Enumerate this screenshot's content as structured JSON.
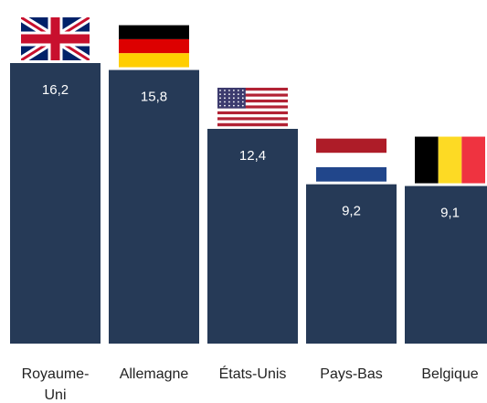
{
  "chart_data": {
    "type": "bar",
    "categories": [
      "Royaume-Uni",
      "Allemagne",
      "États-Unis",
      "Pays-Bas",
      "Belgique"
    ],
    "category_lines": [
      [
        "Royaume-",
        "Uni"
      ],
      [
        "Allemagne"
      ],
      [
        "États-Unis"
      ],
      [
        "Pays-Bas"
      ],
      [
        "Belgique"
      ]
    ],
    "values": [
      16.2,
      15.8,
      12.4,
      9.2,
      9.1
    ],
    "value_labels": [
      "16,2",
      "15,8",
      "12,4",
      "9,2",
      "9,1"
    ],
    "flags": [
      "uk-flag",
      "germany-flag",
      "usa-flag",
      "netherlands-flag",
      "belgium-flag"
    ],
    "ylim": [
      0,
      16.2
    ],
    "grid": false,
    "legend": "none",
    "title": "",
    "xlabel": "",
    "ylabel": ""
  },
  "colors": {
    "bar": "#263a57",
    "value_text": "#ffffff",
    "category_text": "#222222"
  }
}
